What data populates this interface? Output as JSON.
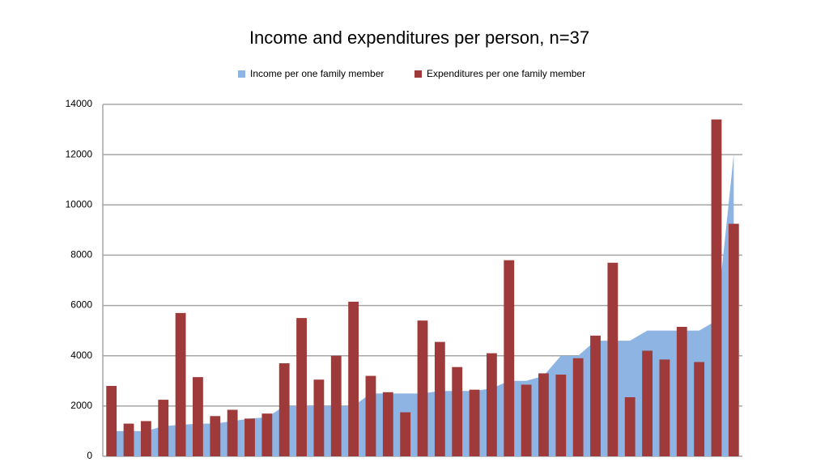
{
  "chart_data": {
    "type": "bar",
    "title": "Income and expenditures per person, n=37",
    "categories": [
      null,
      null,
      null,
      null,
      null,
      null,
      null,
      null,
      null,
      null,
      null,
      null,
      null,
      null,
      null,
      null,
      null,
      null,
      null,
      null,
      null,
      null,
      null,
      null,
      null,
      null,
      null,
      null,
      null,
      null,
      null,
      null,
      null,
      null,
      null,
      null,
      null
    ],
    "series": [
      {
        "name": "Income per one family member",
        "type": "area",
        "color": "#8db4e2",
        "values": [
          1000,
          1000,
          1000,
          1200,
          1250,
          1300,
          1300,
          1400,
          1500,
          1550,
          2000,
          2000,
          2000,
          2000,
          2000,
          2500,
          2500,
          2500,
          2500,
          2600,
          2600,
          2600,
          2700,
          3000,
          3000,
          3200,
          4000,
          4000,
          4600,
          4600,
          4600,
          5000,
          5000,
          5000,
          5000,
          5400,
          12000
        ]
      },
      {
        "name": "Expenditures per one family member",
        "type": "bar",
        "color": "#9e3b3a",
        "values": [
          2800,
          1300,
          1400,
          2250,
          5700,
          3150,
          1600,
          1850,
          1500,
          1700,
          3700,
          5500,
          3050,
          4000,
          6150,
          3200,
          2550,
          1750,
          5400,
          4550,
          3550,
          2650,
          4100,
          7800,
          2850,
          3300,
          3250,
          3900,
          4800,
          7700,
          2350,
          4200,
          3850,
          5150,
          3750,
          13400,
          9250
        ]
      }
    ],
    "ylim": [
      0,
      14000
    ],
    "yticks": [
      0,
      2000,
      4000,
      6000,
      8000,
      10000,
      12000,
      14000
    ],
    "grid": true
  }
}
